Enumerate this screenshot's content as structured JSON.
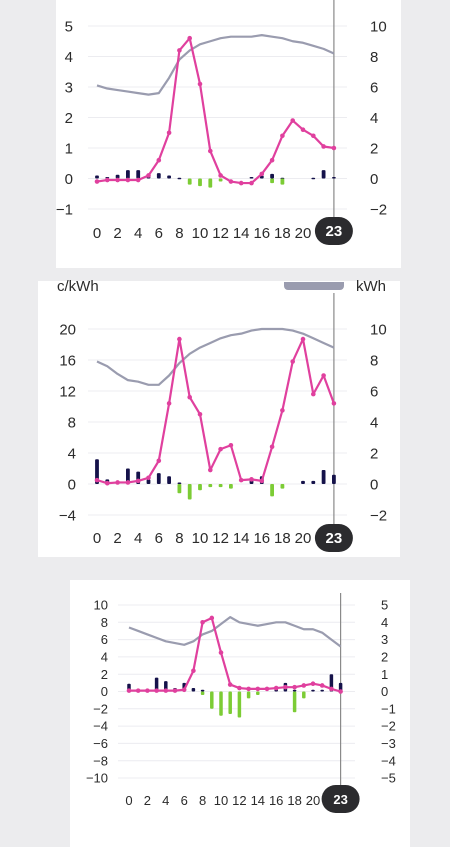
{
  "colors": {
    "price": "#e0409e",
    "consumption": "#15124a",
    "production": "#7ccc35",
    "temperature": "#9a9caf",
    "cursor": "#8a8a8a",
    "badge": "#2b2b2e",
    "grid": "#ececf0"
  },
  "panel2": {
    "left_unit": "c/kWh",
    "right_unit": "kWh"
  },
  "chart_data": [
    {
      "type": "line",
      "x": [
        0,
        1,
        2,
        3,
        4,
        5,
        6,
        7,
        8,
        9,
        10,
        11,
        12,
        13,
        14,
        15,
        16,
        17,
        18,
        19,
        20,
        21,
        22,
        23
      ],
      "xticks": [
        0,
        2,
        4,
        6,
        8,
        10,
        12,
        14,
        16,
        18,
        20
      ],
      "highlight_x": "23",
      "ylim_left": [
        -1,
        5
      ],
      "yticks_left": [
        -1,
        0,
        1,
        2,
        3,
        4,
        5
      ],
      "ylim_right": [
        -2,
        10
      ],
      "yticks_right": [
        -2,
        0,
        2,
        4,
        6,
        8,
        10
      ],
      "price": [
        -0.1,
        -0.05,
        -0.05,
        -0.05,
        -0.05,
        0.1,
        0.6,
        1.5,
        4.2,
        4.6,
        3.1,
        0.9,
        0.1,
        -0.1,
        -0.15,
        -0.15,
        0.15,
        0.6,
        1.4,
        1.9,
        1.6,
        1.4,
        1.05,
        1.0
      ],
      "consumption": [
        0.2,
        0.1,
        0.25,
        0.55,
        0.55,
        0.3,
        0.35,
        0.2,
        0.05,
        0.0,
        0.0,
        0.0,
        0.0,
        0.0,
        0.0,
        0.1,
        0.2,
        0.3,
        0.05,
        0.0,
        0.0,
        0.05,
        0.55,
        0.1
      ],
      "production": [
        0,
        0,
        0,
        0,
        0,
        0,
        0,
        0,
        0,
        -0.4,
        -0.5,
        -0.6,
        -0.2,
        0,
        0,
        0,
        0,
        -0.3,
        -0.4,
        0,
        0,
        0,
        0,
        0
      ],
      "temperature": [
        6.1,
        5.9,
        5.8,
        5.7,
        5.6,
        5.5,
        5.6,
        6.6,
        7.8,
        8.4,
        8.8,
        9.0,
        9.2,
        9.3,
        9.3,
        9.3,
        9.4,
        9.3,
        9.2,
        9.0,
        8.9,
        8.7,
        8.5,
        8.2
      ]
    },
    {
      "type": "line",
      "x": [
        0,
        1,
        2,
        3,
        4,
        5,
        6,
        7,
        8,
        9,
        10,
        11,
        12,
        13,
        14,
        15,
        16,
        17,
        18,
        19,
        20,
        21,
        22,
        23
      ],
      "xticks": [
        0,
        2,
        4,
        6,
        8,
        10,
        12,
        14,
        16,
        18,
        20
      ],
      "highlight_x": "23",
      "ylim_left": [
        -4,
        20
      ],
      "yticks_left": [
        -4,
        0,
        4,
        8,
        12,
        16,
        20
      ],
      "ylim_right": [
        -2,
        10
      ],
      "yticks_right": [
        -2,
        0,
        2,
        4,
        6,
        8,
        10
      ],
      "price": [
        0.5,
        0.1,
        0.2,
        0.2,
        0.4,
        0.8,
        3.0,
        10.4,
        18.7,
        11.2,
        9.0,
        1.8,
        4.5,
        5.0,
        0.5,
        0.6,
        0.4,
        4.8,
        9.5,
        15.8,
        18.7,
        11.6,
        14.0,
        10.4
      ],
      "consumption": [
        1.6,
        0.3,
        0.1,
        1.0,
        0.8,
        0.3,
        0.7,
        0.5,
        0.1,
        0,
        0,
        0,
        0,
        0,
        0,
        0.4,
        0.5,
        0,
        0,
        0,
        0.2,
        0.2,
        0.9,
        0.6
      ],
      "production": [
        0,
        0,
        0,
        0,
        0,
        0,
        0,
        0,
        -0.6,
        -1.0,
        -0.4,
        -0.2,
        -0.2,
        -0.3,
        0,
        0,
        0,
        -0.8,
        -0.3,
        0,
        0,
        0,
        0,
        0
      ],
      "temperature": [
        7.9,
        7.6,
        7.1,
        6.7,
        6.6,
        6.4,
        6.4,
        7.0,
        7.8,
        8.4,
        8.8,
        9.1,
        9.4,
        9.6,
        9.7,
        9.9,
        10.0,
        10.0,
        10.0,
        9.9,
        9.7,
        9.4,
        9.1,
        8.8
      ]
    },
    {
      "type": "line",
      "x": [
        0,
        1,
        2,
        3,
        4,
        5,
        6,
        7,
        8,
        9,
        10,
        11,
        12,
        13,
        14,
        15,
        16,
        17,
        18,
        19,
        20,
        21,
        22,
        23
      ],
      "xticks": [
        0,
        2,
        4,
        6,
        8,
        10,
        12,
        14,
        16,
        18,
        20
      ],
      "highlight_x": "23",
      "ylim_left": [
        -10,
        10
      ],
      "yticks_left": [
        -10,
        -8,
        -6,
        -4,
        -2,
        0,
        2,
        4,
        6,
        8,
        10
      ],
      "ylim_right": [
        -5,
        5
      ],
      "yticks_right": [
        -5,
        -4,
        -3,
        -2,
        -1,
        0,
        1,
        2,
        3,
        4,
        5
      ],
      "price": [
        0.1,
        0.1,
        0.1,
        0.1,
        0.1,
        0.1,
        0.2,
        2.4,
        8.0,
        8.5,
        4.5,
        0.8,
        0.4,
        0.3,
        0.3,
        0.3,
        0.4,
        0.5,
        0.5,
        0.7,
        0.9,
        0.7,
        0.3,
        0
      ],
      "consumption": [
        0.45,
        0.1,
        0.1,
        0.8,
        0.6,
        0.2,
        0.5,
        0.2,
        0.1,
        0,
        0,
        0,
        0,
        0,
        0,
        0,
        0.2,
        0.5,
        0.1,
        0,
        0.1,
        0.1,
        1.0,
        0.5
      ],
      "production": [
        0,
        0,
        0,
        0,
        0,
        0,
        0,
        0,
        -0.2,
        -1.0,
        -1.4,
        -1.3,
        -1.5,
        -0.4,
        -0.2,
        0,
        0,
        0,
        -1.2,
        -0.4,
        0,
        0,
        0,
        0
      ],
      "temperature": [
        3.7,
        3.5,
        3.3,
        3.1,
        2.9,
        2.8,
        2.7,
        2.9,
        3.3,
        3.5,
        3.9,
        4.3,
        4.0,
        3.9,
        3.8,
        3.9,
        4.0,
        4.0,
        3.8,
        3.6,
        3.6,
        3.4,
        3.0,
        2.6
      ]
    }
  ]
}
